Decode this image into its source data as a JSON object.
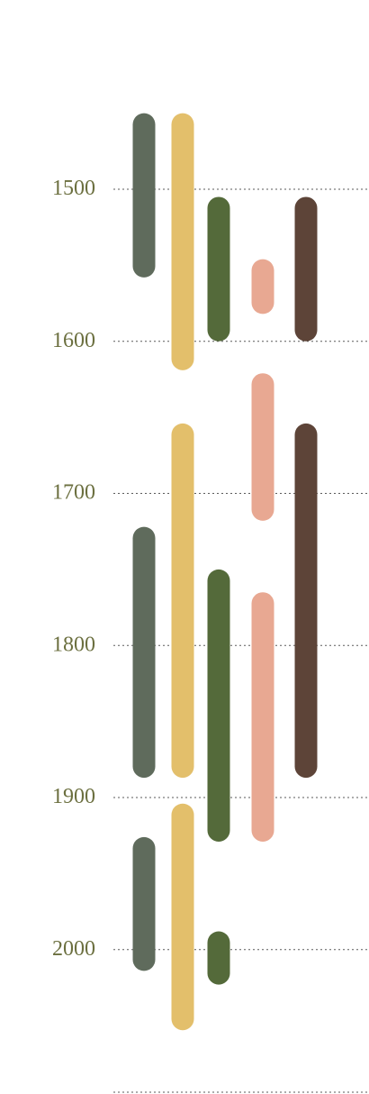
{
  "chart_data": {
    "type": "timeline",
    "title": "",
    "xlabel": "",
    "ylabel": "",
    "ylim": [
      1450,
      2100
    ],
    "y_ticks": [
      1500,
      1600,
      1700,
      1800,
      1900,
      2000
    ],
    "grid": "horizontal-dotted",
    "legend": "none",
    "series": [
      {
        "color": "#5f6b5c",
        "ranges": [
          [
            1450,
            1558
          ],
          [
            1722,
            1887
          ],
          [
            1926,
            2014
          ]
        ]
      },
      {
        "color": "#e3bf6b",
        "ranges": [
          [
            1450,
            1619
          ],
          [
            1654,
            1887
          ],
          [
            1904,
            2053
          ]
        ]
      },
      {
        "color": "#546a3a",
        "ranges": [
          [
            1505,
            1600
          ],
          [
            1750,
            1929
          ],
          [
            1988,
            2023
          ]
        ]
      },
      {
        "color": "#e8a892",
        "ranges": [
          [
            1546,
            1582
          ],
          [
            1621,
            1718
          ],
          [
            1765,
            1929
          ]
        ]
      },
      {
        "color": "#5d4438",
        "ranges": [
          [
            1505,
            1600
          ],
          [
            1654,
            1887
          ]
        ]
      }
    ]
  }
}
